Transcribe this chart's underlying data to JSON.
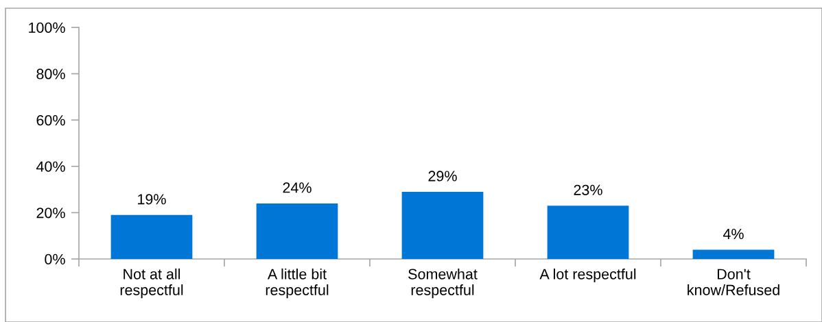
{
  "chart_data": {
    "type": "bar",
    "categories": [
      "Not at all\nrespectful",
      "A little bit\nrespectful",
      "Somewhat\nrespectful",
      "A lot respectful",
      "Don't\nknow/Refused"
    ],
    "values": [
      19,
      24,
      29,
      23,
      4
    ],
    "color": "#0077d6",
    "value_labels": [
      "19%",
      "24%",
      "29%",
      "23%",
      "4%"
    ],
    "ylim": [
      0,
      100
    ],
    "yticks": [
      {
        "value": 0,
        "label": "0%"
      },
      {
        "value": 20,
        "label": "20%"
      },
      {
        "value": 40,
        "label": "40%"
      },
      {
        "value": 60,
        "label": "60%"
      },
      {
        "value": 80,
        "label": "80%"
      },
      {
        "value": 100,
        "label": "100%"
      }
    ],
    "grid": false,
    "legend": false
  }
}
